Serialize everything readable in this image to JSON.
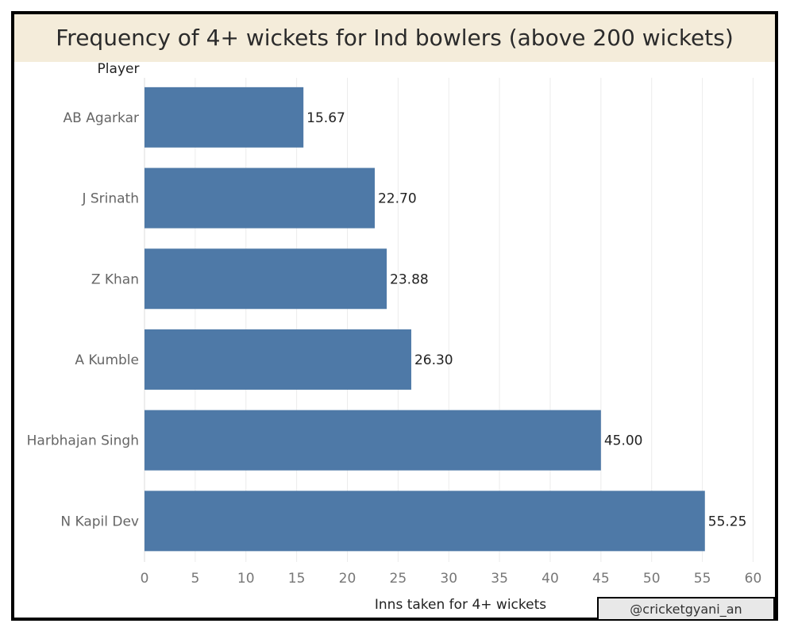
{
  "chart_data": {
    "type": "bar",
    "orientation": "horizontal",
    "title": "Frequency of 4+ wickets for Ind bowlers (above 200 wickets)",
    "row_header": "Player",
    "xlabel": "Inns taken for 4+ wickets",
    "categories": [
      "AB Agarkar",
      "J Srinath",
      "Z Khan",
      "A Kumble",
      "Harbhajan Singh",
      "N Kapil Dev"
    ],
    "values": [
      15.67,
      22.7,
      23.88,
      26.3,
      45.0,
      55.25
    ],
    "value_labels": [
      "15.67",
      "22.70",
      "23.88",
      "26.30",
      "45.00",
      "55.25"
    ],
    "xlim": [
      0,
      62
    ],
    "xticks": [
      0,
      5,
      10,
      15,
      20,
      25,
      30,
      35,
      40,
      45,
      50,
      55,
      60
    ],
    "grid": true,
    "colors": {
      "bar": "#4e79a7",
      "title_band": "#f4ecda"
    }
  },
  "watermark": "@cricketgyani_an"
}
